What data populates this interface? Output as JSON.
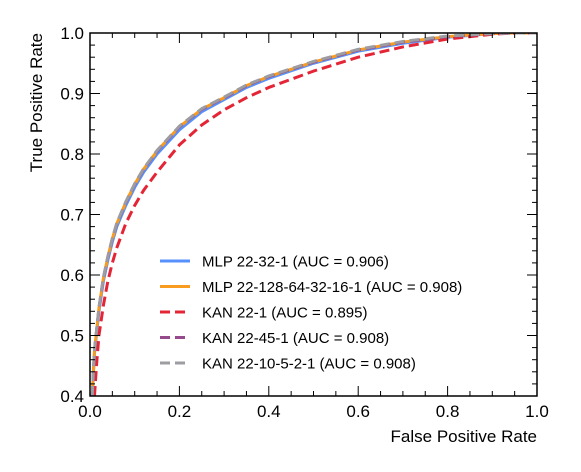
{
  "chart_data": {
    "type": "line",
    "title": "",
    "xlabel": "False Positive Rate",
    "ylabel": "True Positive Rate",
    "xlim": [
      0.0,
      1.0
    ],
    "ylim": [
      0.4,
      1.0
    ],
    "xticks": [
      "0.0",
      "0.2",
      "0.4",
      "0.6",
      "0.8",
      "1.0"
    ],
    "yticks": [
      "0.4",
      "0.5",
      "0.6",
      "0.7",
      "0.8",
      "0.9",
      "1.0"
    ],
    "grid": false,
    "legend_position": "lower-right",
    "series": [
      {
        "name": "MLP 22-32-1 (AUC = 0.906)",
        "color": "#5790fc",
        "dash": "solid",
        "x": [
          0.005,
          0.01,
          0.02,
          0.03,
          0.04,
          0.05,
          0.06,
          0.08,
          0.1,
          0.12,
          0.15,
          0.2,
          0.25,
          0.3,
          0.35,
          0.4,
          0.5,
          0.6,
          0.7,
          0.8,
          0.9,
          0.95,
          1.0
        ],
        "y": [
          0.4,
          0.47,
          0.54,
          0.59,
          0.625,
          0.655,
          0.68,
          0.715,
          0.745,
          0.77,
          0.8,
          0.84,
          0.87,
          0.89,
          0.91,
          0.925,
          0.95,
          0.97,
          0.983,
          0.993,
          0.999,
          1.0,
          1.0
        ]
      },
      {
        "name": "MLP 22-128-64-32-16-1 (AUC = 0.908)",
        "color": "#f89c20",
        "dash": "solid",
        "x": [
          0.005,
          0.01,
          0.02,
          0.03,
          0.04,
          0.05,
          0.06,
          0.08,
          0.1,
          0.12,
          0.15,
          0.2,
          0.25,
          0.3,
          0.35,
          0.4,
          0.5,
          0.6,
          0.7,
          0.8,
          0.9,
          0.95,
          1.0
        ],
        "y": [
          0.4,
          0.475,
          0.545,
          0.595,
          0.63,
          0.66,
          0.685,
          0.72,
          0.75,
          0.775,
          0.805,
          0.845,
          0.874,
          0.893,
          0.913,
          0.928,
          0.952,
          0.972,
          0.985,
          0.994,
          0.999,
          1.0,
          1.0
        ]
      },
      {
        "name": "KAN 22-1 (AUC = 0.895)",
        "color": "#e42536",
        "dash": "dashed",
        "x": [
          0.01,
          0.015,
          0.02,
          0.03,
          0.04,
          0.05,
          0.06,
          0.08,
          0.1,
          0.12,
          0.15,
          0.2,
          0.25,
          0.3,
          0.35,
          0.4,
          0.5,
          0.6,
          0.7,
          0.8,
          0.9,
          0.95,
          1.0
        ],
        "y": [
          0.4,
          0.455,
          0.5,
          0.55,
          0.59,
          0.62,
          0.645,
          0.685,
          0.715,
          0.74,
          0.77,
          0.815,
          0.848,
          0.873,
          0.893,
          0.91,
          0.937,
          0.96,
          0.977,
          0.99,
          0.998,
          1.0,
          1.0
        ]
      },
      {
        "name": "KAN 22-45-1 (AUC = 0.908)",
        "color": "#964a8b",
        "dash": "dashed",
        "x": [
          0.005,
          0.01,
          0.02,
          0.03,
          0.04,
          0.05,
          0.06,
          0.08,
          0.1,
          0.12,
          0.15,
          0.2,
          0.25,
          0.3,
          0.35,
          0.4,
          0.5,
          0.6,
          0.7,
          0.8,
          0.9,
          0.95,
          1.0
        ],
        "y": [
          0.4,
          0.475,
          0.545,
          0.595,
          0.63,
          0.66,
          0.685,
          0.72,
          0.75,
          0.775,
          0.805,
          0.845,
          0.874,
          0.893,
          0.913,
          0.928,
          0.952,
          0.972,
          0.985,
          0.994,
          0.999,
          1.0,
          1.0
        ]
      },
      {
        "name": "KAN 22-10-5-2-1 (AUC = 0.908)",
        "color": "#9c9ca1",
        "dash": "dashed",
        "x": [
          0.005,
          0.01,
          0.02,
          0.03,
          0.04,
          0.05,
          0.06,
          0.08,
          0.1,
          0.12,
          0.15,
          0.2,
          0.25,
          0.3,
          0.35,
          0.4,
          0.5,
          0.6,
          0.7,
          0.8,
          0.9,
          0.95,
          1.0
        ],
        "y": [
          0.4,
          0.476,
          0.546,
          0.596,
          0.631,
          0.661,
          0.686,
          0.721,
          0.751,
          0.776,
          0.806,
          0.846,
          0.875,
          0.894,
          0.914,
          0.929,
          0.953,
          0.973,
          0.986,
          0.995,
          0.999,
          1.0,
          1.0
        ]
      }
    ]
  }
}
